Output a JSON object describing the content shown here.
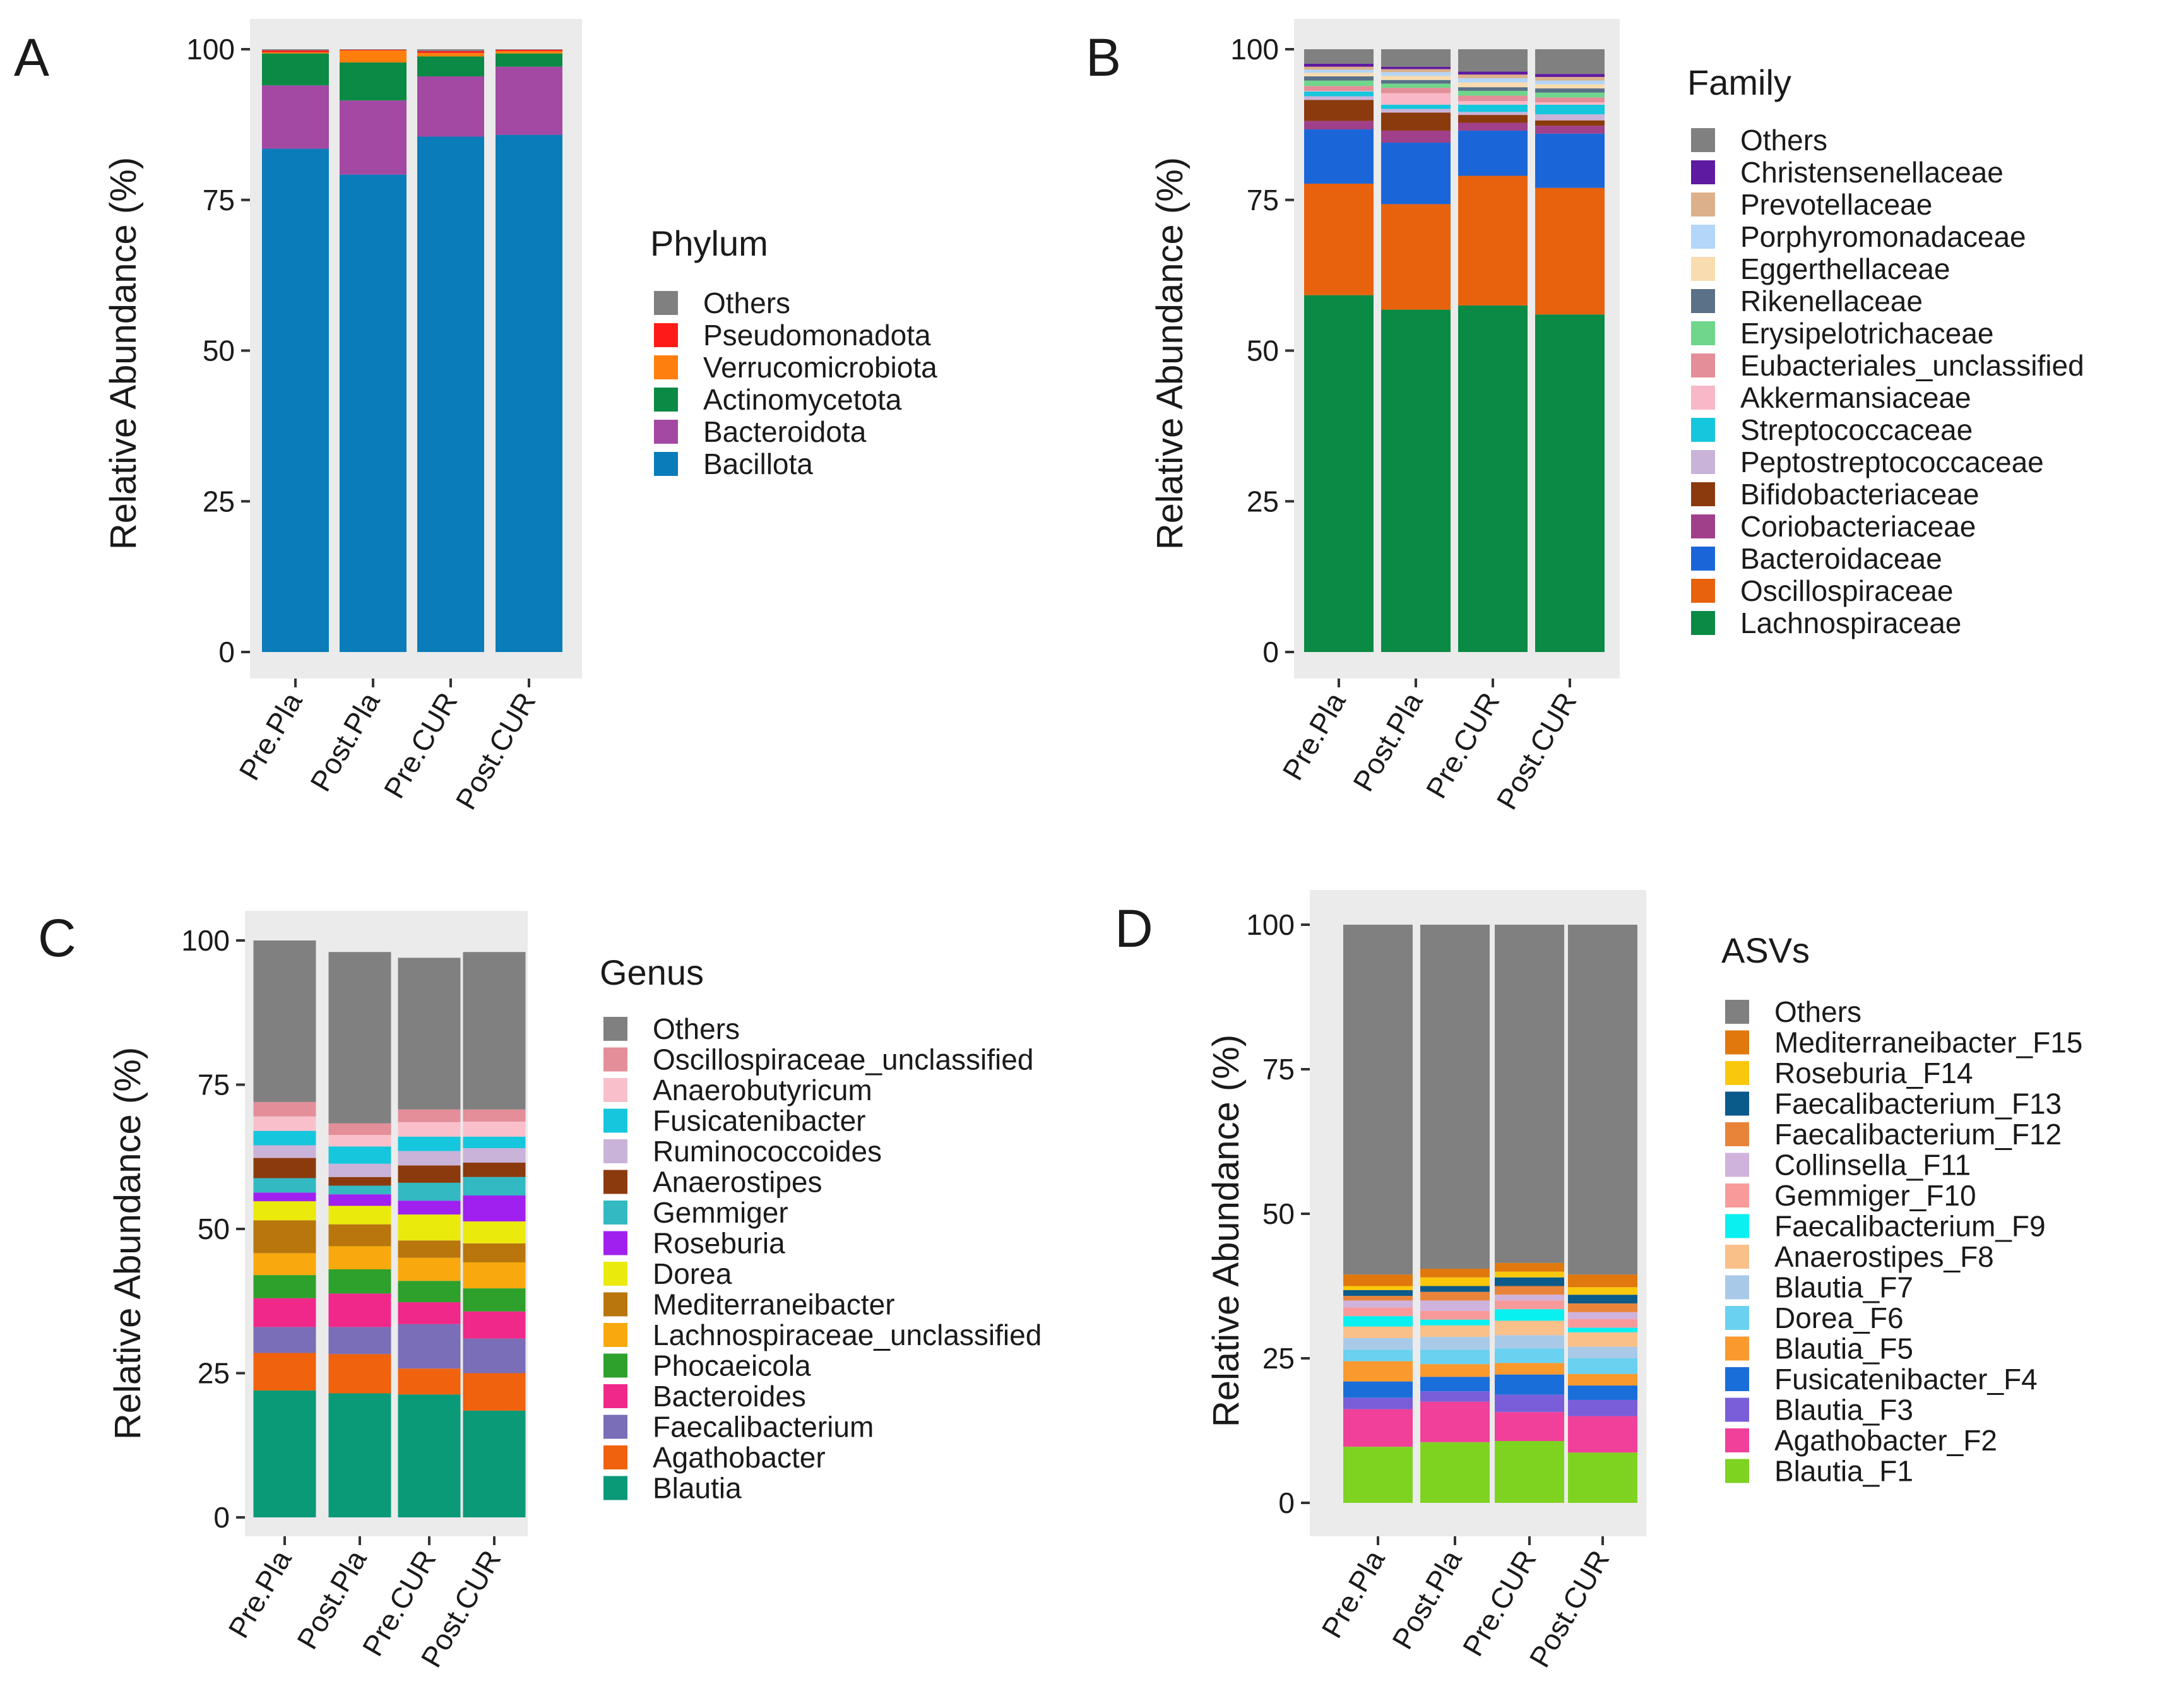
{
  "chart_data": [
    {
      "panel": "A",
      "type": "bar",
      "stacked": true,
      "categories": [
        "Pre.Pla",
        "Post.Pla",
        "Pre.CUR",
        "Post.CUR"
      ],
      "ylabel": "Relative Abundance (%)",
      "ylim": [
        0,
        100
      ],
      "yticks": [
        "0",
        "25",
        "50",
        "75",
        "100"
      ],
      "legend_title": "Phylum",
      "series": [
        {
          "name": "Bacillota",
          "color": "#0a7cb9",
          "values": [
            83.5,
            79.2,
            85.5,
            85.8
          ]
        },
        {
          "name": "Bacteroidota",
          "color": "#a349a4",
          "values": [
            10.5,
            12.3,
            10.0,
            11.3
          ]
        },
        {
          "name": "Actinomycetota",
          "color": "#0a8a44",
          "values": [
            5.3,
            6.3,
            3.3,
            2.2
          ]
        },
        {
          "name": "Verrucomicrobiota",
          "color": "#ff7f0e",
          "values": [
            0.2,
            2.0,
            0.6,
            0.4
          ]
        },
        {
          "name": "Pseudomonadota",
          "color": "#ff1a1a",
          "values": [
            0.3,
            0.1,
            0.3,
            0.2
          ]
        },
        {
          "name": "Others",
          "color": "#808080",
          "values": [
            0.2,
            0.1,
            0.3,
            0.1
          ]
        }
      ]
    },
    {
      "panel": "B",
      "type": "bar",
      "stacked": true,
      "categories": [
        "Pre.Pla",
        "Post.Pla",
        "Pre.CUR",
        "Post.CUR"
      ],
      "ylabel": "Relative Abundance (%)",
      "ylim": [
        0,
        100
      ],
      "yticks": [
        "0",
        "25",
        "50",
        "75",
        "100"
      ],
      "legend_title": "Family",
      "series": [
        {
          "name": "Lachnospiraceae",
          "color": "#0a8a44",
          "values": [
            59.2,
            56.8,
            57.5,
            56.0
          ]
        },
        {
          "name": "Oscillospiraceae",
          "color": "#e8620d",
          "values": [
            18.5,
            17.5,
            21.5,
            21.0
          ]
        },
        {
          "name": "Bacteroidaceae",
          "color": "#1a66d9",
          "values": [
            9.0,
            10.2,
            7.5,
            9.0
          ]
        },
        {
          "name": "Coriobacteriaceae",
          "color": "#a0408a",
          "values": [
            1.4,
            2.0,
            1.3,
            1.3
          ]
        },
        {
          "name": "Bifidobacteriaceae",
          "color": "#8b3a0e",
          "values": [
            3.5,
            3.0,
            1.3,
            0.9
          ]
        },
        {
          "name": "Peptostreptococcaceae",
          "color": "#c9b3d9",
          "values": [
            0.6,
            0.6,
            0.5,
            1.0
          ]
        },
        {
          "name": "Streptococcaceae",
          "color": "#16c6dc",
          "values": [
            0.8,
            0.7,
            1.2,
            1.6
          ]
        },
        {
          "name": "Akkermansiaceae",
          "color": "#f9b8c8",
          "values": [
            0.1,
            1.9,
            0.6,
            0.4
          ]
        },
        {
          "name": "Eubacteriales_unclassified",
          "color": "#e38e98",
          "values": [
            0.8,
            0.9,
            0.9,
            0.8
          ]
        },
        {
          "name": "Erysipelotrichaceae",
          "color": "#6fd68c",
          "values": [
            0.9,
            0.7,
            0.8,
            0.8
          ]
        },
        {
          "name": "Rikenellaceae",
          "color": "#5a7188",
          "values": [
            0.7,
            0.6,
            0.6,
            0.7
          ]
        },
        {
          "name": "Eggerthellaceae",
          "color": "#f9dcb0",
          "values": [
            0.6,
            0.7,
            0.8,
            0.7
          ]
        },
        {
          "name": "Porphyromonadaceae",
          "color": "#b3d6f9",
          "values": [
            0.5,
            0.6,
            0.7,
            0.6
          ]
        },
        {
          "name": "Prevotellaceae",
          "color": "#dcb08a",
          "values": [
            0.5,
            0.5,
            0.6,
            0.6
          ]
        },
        {
          "name": "Christensenellaceae",
          "color": "#5e1aa0",
          "values": [
            0.5,
            0.4,
            0.5,
            0.5
          ]
        },
        {
          "name": "Others",
          "color": "#808080",
          "values": [
            2.4,
            2.9,
            3.7,
            4.1
          ]
        }
      ]
    },
    {
      "panel": "C",
      "type": "bar",
      "stacked": true,
      "categories": [
        "Pre.Pla",
        "Post.Pla",
        "Pre.CUR",
        "Post.CUR"
      ],
      "ylabel": "Relative Abundance (%)",
      "ylim": [
        0,
        100
      ],
      "yticks": [
        "0",
        "25",
        "50",
        "75",
        "100"
      ],
      "legend_title": "Genus",
      "series": [
        {
          "name": "Blautia",
          "color": "#0a9a78",
          "values": [
            22.0,
            21.5,
            21.3,
            18.5
          ]
        },
        {
          "name": "Agathobacter",
          "color": "#f0620d",
          "values": [
            6.5,
            6.8,
            4.5,
            6.5
          ]
        },
        {
          "name": "Faecalibacterium",
          "color": "#7a6eb8",
          "values": [
            4.5,
            4.7,
            7.7,
            6.0
          ]
        },
        {
          "name": "Bacteroides",
          "color": "#f0288a",
          "values": [
            5.0,
            5.8,
            3.8,
            4.7
          ]
        },
        {
          "name": "Phocaeicola",
          "color": "#2ea02c",
          "values": [
            4.0,
            4.2,
            3.7,
            4.0
          ]
        },
        {
          "name": "Lachnospiraceae_unclassified",
          "color": "#f9a90d",
          "values": [
            3.8,
            4.0,
            4.0,
            4.5
          ]
        },
        {
          "name": "Mediterraneibacter",
          "color": "#b8760d",
          "values": [
            5.7,
            3.8,
            3.0,
            3.3
          ]
        },
        {
          "name": "Dorea",
          "color": "#eaea0d",
          "values": [
            3.3,
            3.2,
            4.5,
            3.8
          ]
        },
        {
          "name": "Roseburia",
          "color": "#a020f0",
          "values": [
            1.5,
            2.0,
            2.4,
            4.5
          ]
        },
        {
          "name": "Gemmiger",
          "color": "#33b9c2",
          "values": [
            2.5,
            1.5,
            3.1,
            3.2
          ]
        },
        {
          "name": "Anaerostipes",
          "color": "#8b3a0e",
          "values": [
            3.5,
            1.5,
            3.0,
            2.5
          ]
        },
        {
          "name": "Ruminococcoides",
          "color": "#c9b3d9",
          "values": [
            2.2,
            2.3,
            2.5,
            2.5
          ]
        },
        {
          "name": "Fusicatenibacter",
          "color": "#16c6dc",
          "values": [
            2.5,
            3.0,
            2.5,
            2.0
          ]
        },
        {
          "name": "Anaerobutyricum",
          "color": "#f9c0cc",
          "values": [
            2.5,
            2.0,
            2.5,
            2.6
          ]
        },
        {
          "name": "Oscillospiraceae_unclassified",
          "color": "#e38e98",
          "values": [
            2.5,
            2.0,
            2.2,
            2.1
          ]
        },
        {
          "name": "Others",
          "color": "#808080",
          "values": [
            28.0,
            29.7,
            26.3,
            27.3
          ]
        }
      ]
    },
    {
      "panel": "D",
      "type": "bar",
      "stacked": true,
      "categories": [
        "Pre.Pla",
        "Post.Pla",
        "Pre.CUR",
        "Post.CUR"
      ],
      "ylabel": "Relative Abundance (%)",
      "ylim": [
        0,
        100
      ],
      "yticks": [
        "0",
        "25",
        "50",
        "75",
        "100"
      ],
      "legend_title": "ASVs",
      "series": [
        {
          "name": "Blautia_F1",
          "color": "#7ed321",
          "values": [
            9.7,
            10.5,
            10.7,
            8.7
          ]
        },
        {
          "name": "Agathobacter_F2",
          "color": "#f0409a",
          "values": [
            6.5,
            7.0,
            5.0,
            6.3
          ]
        },
        {
          "name": "Blautia_F3",
          "color": "#7a5ed9",
          "values": [
            2.0,
            1.8,
            3.0,
            2.8
          ]
        },
        {
          "name": "Fusicatenibacter_F4",
          "color": "#1a6ed9",
          "values": [
            2.8,
            2.5,
            3.5,
            2.5
          ]
        },
        {
          "name": "Blautia_F5",
          "color": "#f9992e",
          "values": [
            3.5,
            2.2,
            2.0,
            2.0
          ]
        },
        {
          "name": "Dorea_F6",
          "color": "#6ad1f0",
          "values": [
            2.0,
            2.5,
            2.5,
            2.7
          ]
        },
        {
          "name": "Blautia_F7",
          "color": "#a9c9e9",
          "values": [
            2.0,
            2.2,
            2.3,
            2.0
          ]
        },
        {
          "name": "Anaerostipes_F8",
          "color": "#f9c08a",
          "values": [
            2.0,
            2.0,
            2.5,
            2.5
          ]
        },
        {
          "name": "Faecalibacterium_F9",
          "color": "#0af0f0",
          "values": [
            1.8,
            1.0,
            2.0,
            0.8
          ]
        },
        {
          "name": "Gemmiger_F10",
          "color": "#f99a9a",
          "values": [
            1.5,
            1.5,
            1.5,
            1.5
          ]
        },
        {
          "name": "Collinsella_F11",
          "color": "#d0b3dc",
          "values": [
            1.2,
            1.8,
            1.0,
            1.2
          ]
        },
        {
          "name": "Faecalibacterium_F12",
          "color": "#e8843a",
          "values": [
            0.8,
            1.5,
            1.5,
            1.5
          ]
        },
        {
          "name": "Faecalibacterium_F13",
          "color": "#0a5a8a",
          "values": [
            1.0,
            1.0,
            1.5,
            1.5
          ]
        },
        {
          "name": "Roseburia_F14",
          "color": "#f9c80d",
          "values": [
            0.7,
            1.5,
            1.0,
            1.3
          ]
        },
        {
          "name": "Mediterraneibacter_F15",
          "color": "#e0780d",
          "values": [
            2.0,
            1.5,
            1.5,
            2.2
          ]
        },
        {
          "name": "Others",
          "color": "#808080",
          "values": [
            60.5,
            59.5,
            58.5,
            60.5
          ]
        }
      ]
    }
  ]
}
